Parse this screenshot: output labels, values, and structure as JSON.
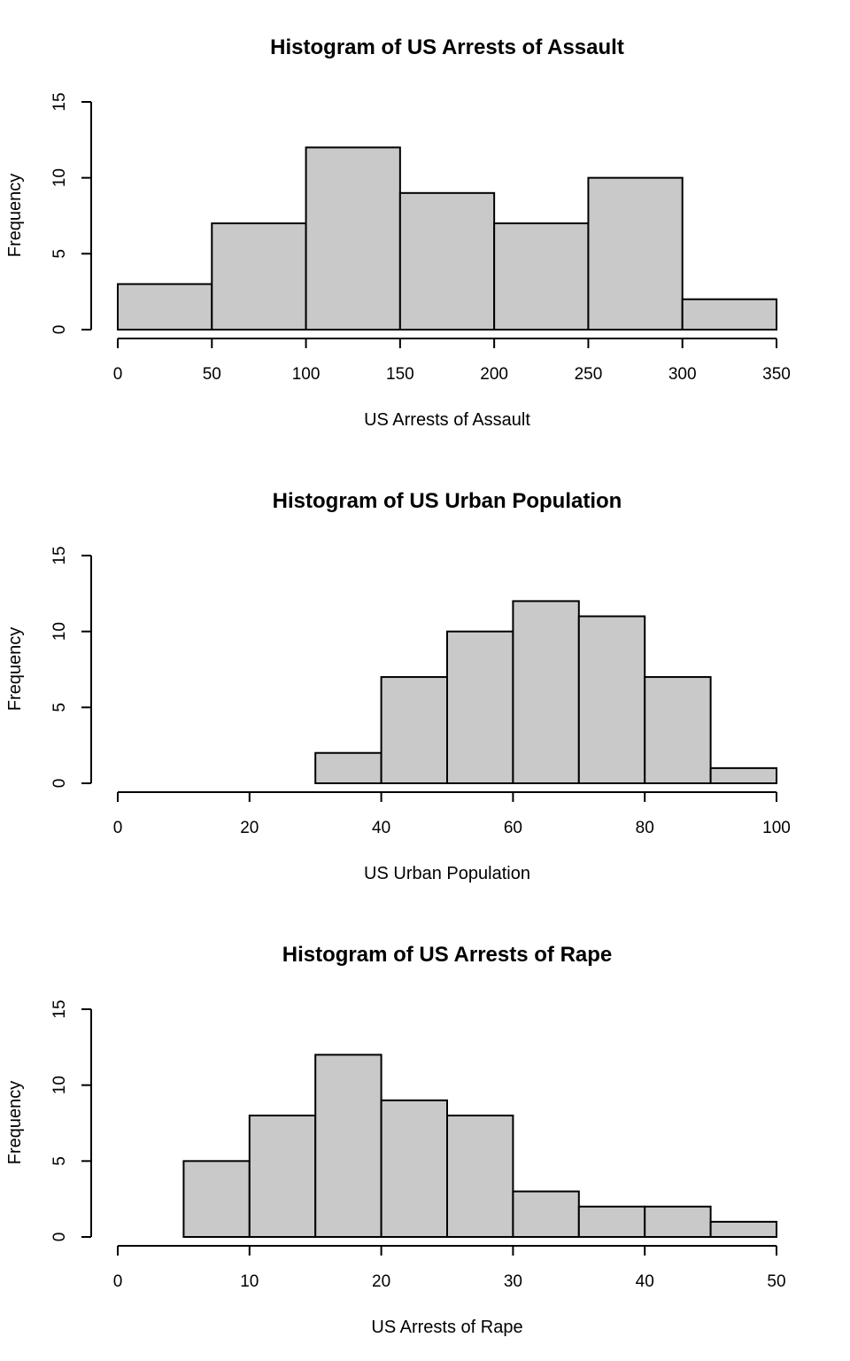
{
  "chart_data": [
    {
      "type": "bar",
      "title": "Histogram of US Arrests of Assault",
      "xlabel": "US Arrests of Assault",
      "ylabel": "Frequency",
      "bins": [
        [
          0,
          50
        ],
        [
          50,
          100
        ],
        [
          100,
          150
        ],
        [
          150,
          200
        ],
        [
          200,
          250
        ],
        [
          250,
          300
        ],
        [
          300,
          350
        ]
      ],
      "values": [
        3,
        7,
        12,
        9,
        7,
        10,
        2
      ],
      "xlim": [
        0,
        350
      ],
      "ylim": [
        0,
        15
      ],
      "xticks": [
        0,
        50,
        100,
        150,
        200,
        250,
        300,
        350
      ],
      "yticks": [
        0,
        5,
        10,
        15
      ],
      "grid": false,
      "bar_color": "#c9c9c9"
    },
    {
      "type": "bar",
      "title": "Histogram of US Urban Population",
      "xlabel": "US Urban Population",
      "ylabel": "Frequency",
      "bins": [
        [
          30,
          40
        ],
        [
          40,
          50
        ],
        [
          50,
          60
        ],
        [
          60,
          70
        ],
        [
          70,
          80
        ],
        [
          80,
          90
        ],
        [
          90,
          100
        ]
      ],
      "values": [
        2,
        7,
        10,
        12,
        11,
        7,
        1
      ],
      "xlim": [
        0,
        100
      ],
      "ylim": [
        0,
        15
      ],
      "xticks": [
        0,
        20,
        40,
        60,
        80,
        100
      ],
      "yticks": [
        0,
        5,
        10,
        15
      ],
      "grid": false,
      "bar_color": "#c9c9c9"
    },
    {
      "type": "bar",
      "title": "Histogram of US Arrests of Rape",
      "xlabel": "US Arrests of Rape",
      "ylabel": "Frequency",
      "bins": [
        [
          5,
          10
        ],
        [
          10,
          15
        ],
        [
          15,
          20
        ],
        [
          20,
          25
        ],
        [
          25,
          30
        ],
        [
          30,
          35
        ],
        [
          35,
          40
        ],
        [
          40,
          45
        ],
        [
          45,
          50
        ]
      ],
      "values": [
        5,
        8,
        12,
        9,
        8,
        3,
        2,
        2,
        1
      ],
      "xlim": [
        0,
        50
      ],
      "ylim": [
        0,
        15
      ],
      "xticks": [
        0,
        10,
        20,
        30,
        40,
        50
      ],
      "yticks": [
        0,
        5,
        10,
        15
      ],
      "grid": false,
      "bar_color": "#c9c9c9"
    }
  ]
}
